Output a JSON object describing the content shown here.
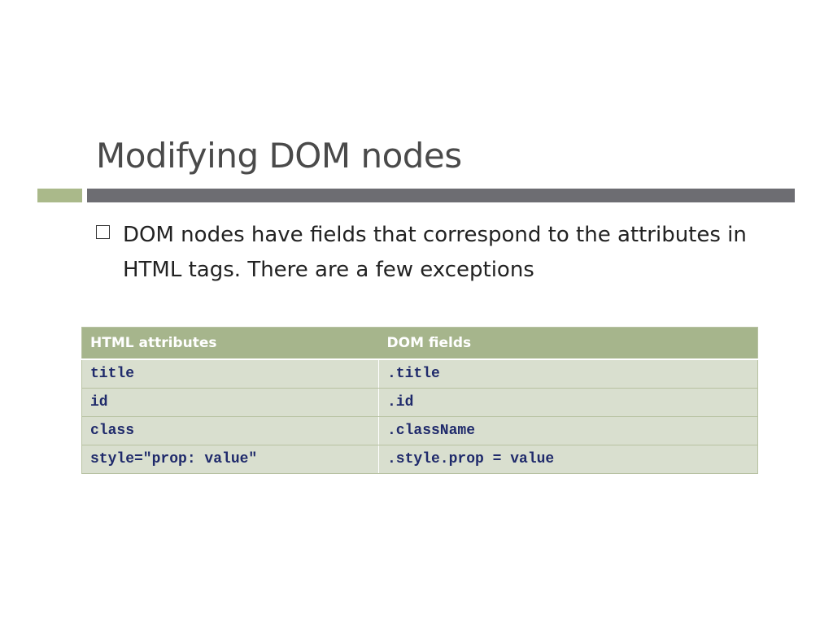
{
  "slide": {
    "title": "Modifying DOM nodes",
    "bullet": "DOM nodes have fields that correspond to the attributes in HTML tags. There are a few exceptions"
  },
  "table": {
    "headers": [
      "HTML attributes",
      "DOM fields"
    ],
    "rows": [
      [
        "title",
        ".title"
      ],
      [
        "id",
        ".id"
      ],
      [
        "class",
        ".className"
      ],
      [
        "style=\"prop: value\"",
        ".style.prop = value"
      ]
    ]
  },
  "colors": {
    "accent_green": "#aab98a",
    "accent_gray": "#6d6d72",
    "cell_text": "#1f2a6b"
  }
}
